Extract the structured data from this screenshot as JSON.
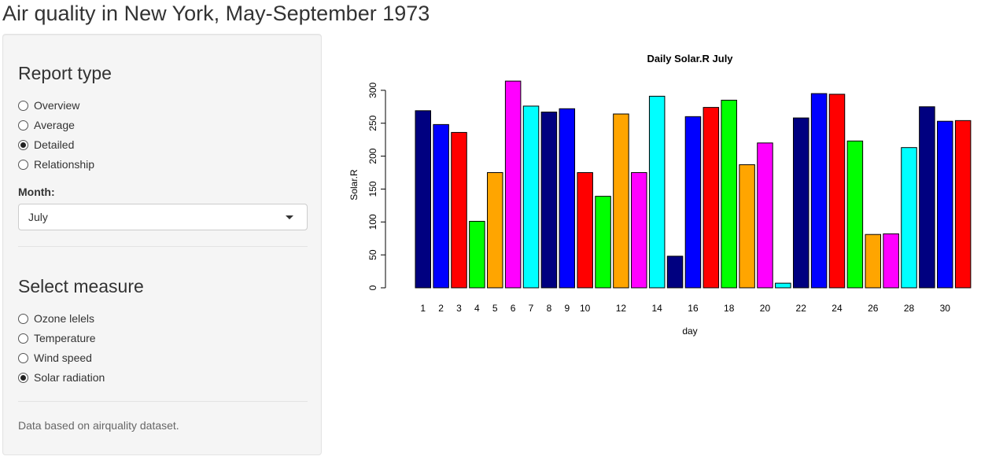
{
  "page": {
    "title": "Air quality in New York, May-September 1973"
  },
  "report_type": {
    "heading": "Report type",
    "options": [
      "Overview",
      "Average",
      "Detailed",
      "Relationship"
    ],
    "selected": "Detailed"
  },
  "month": {
    "label": "Month:",
    "value": "July"
  },
  "measure": {
    "heading": "Select measure",
    "options": [
      "Ozone lelels",
      "Temperature",
      "Wind speed",
      "Solar radiation"
    ],
    "selected": "Solar radiation"
  },
  "footnote": "Data based on airquality dataset.",
  "chart_data": {
    "type": "bar",
    "title": "Daily  Solar.R  July",
    "xlabel": "day",
    "ylabel": "Solar.R",
    "ylim": [
      0,
      300
    ],
    "yticks": [
      0,
      50,
      100,
      150,
      200,
      250,
      300
    ],
    "categories": [
      "1",
      "2",
      "3",
      "4",
      "5",
      "6",
      "7",
      "8",
      "9",
      "10",
      "11",
      "12",
      "13",
      "14",
      "15",
      "16",
      "17",
      "18",
      "19",
      "20",
      "21",
      "22",
      "23",
      "24",
      "25",
      "26",
      "27",
      "28",
      "29",
      "30",
      "31"
    ],
    "xtick_labels": [
      "1",
      "2",
      "3",
      "4",
      "5",
      "6",
      "7",
      "8",
      "9",
      "10",
      "12",
      "14",
      "16",
      "18",
      "20",
      "22",
      "24",
      "26",
      "28",
      "30"
    ],
    "values": [
      269,
      248,
      236,
      101,
      175,
      314,
      276,
      267,
      272,
      175,
      139,
      264,
      175,
      291,
      48,
      260,
      274,
      285,
      187,
      220,
      7,
      258,
      295,
      294,
      223,
      81,
      82,
      213,
      275,
      253,
      254
    ],
    "colors": [
      "#000080",
      "#0000ff",
      "#ff0000",
      "#00ff00",
      "#ffa500",
      "#ff00ff",
      "#00ffff"
    ],
    "legend": "none",
    "grid": false
  }
}
